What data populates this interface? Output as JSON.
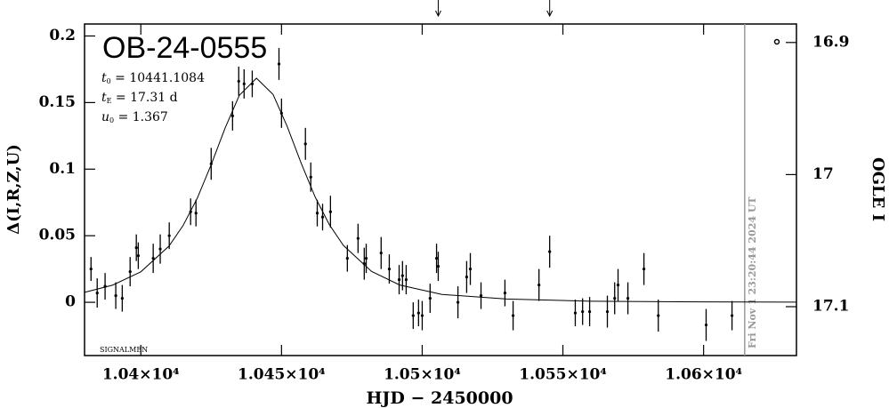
{
  "chart_data": {
    "type": "scatter",
    "title": "OB-24-0555",
    "parameters": [
      {
        "symbol": "t",
        "subscript": "0",
        "text": " = 10441.1084"
      },
      {
        "symbol": "t",
        "subscript": "E",
        "text": " = 17.31 d"
      },
      {
        "symbol": "u",
        "subscript": "0",
        "text": " = 1.367"
      }
    ],
    "annotation": "SIGNALMEN",
    "xlabel": "HJD − 2450000",
    "ylabel": "Δ(I,R,Z,U)",
    "y2label": "OGLE I",
    "color": "#000000",
    "x": [
      10382.3,
      10384.5,
      10387.3,
      10391.1,
      10393.4,
      10396.2,
      10398.4,
      10399.1,
      10404.4,
      10406.9,
      10410.1,
      10417.7,
      10419.6,
      10425.0,
      10432.6,
      10434.8,
      10436.7,
      10439.6,
      10449.1,
      10450.0,
      10458.5,
      10460.4,
      10462.7,
      10464.6,
      10467.4,
      10473.4,
      10477.2,
      10479.4,
      10480.1,
      10485.4,
      10488.3,
      10491.8,
      10493.0,
      10494.3,
      10496.8,
      10498.7,
      10500.0,
      10502.8,
      10505.1,
      10505.7,
      10512.7,
      10515.8,
      10517.1,
      10520.9,
      10529.4,
      10532.3,
      10541.5,
      10545.3,
      10554.4,
      10557.0,
      10559.5,
      10565.8,
      10568.4,
      10569.6,
      10573.1,
      10578.8,
      10583.9,
      10600.9,
      10610.1
    ],
    "values": [
      0.025,
      0.007,
      0.012,
      0.005,
      0.003,
      0.023,
      0.041,
      0.035,
      0.033,
      0.04,
      0.05,
      0.068,
      0.067,
      0.104,
      0.14,
      0.166,
      0.164,
      0.164,
      0.179,
      0.142,
      0.119,
      0.094,
      0.067,
      0.064,
      0.068,
      0.033,
      0.048,
      0.029,
      0.033,
      0.037,
      0.025,
      0.017,
      0.02,
      0.017,
      -0.01,
      -0.008,
      -0.01,
      0.003,
      0.033,
      0.027,
      0.0,
      0.019,
      0.025,
      0.005,
      0.007,
      -0.01,
      0.013,
      0.038,
      -0.008,
      -0.007,
      -0.007,
      -0.007,
      0.003,
      0.013,
      0.003,
      0.025,
      -0.01,
      -0.017,
      -0.01
    ],
    "errors": [
      0.009,
      0.011,
      0.01,
      0.01,
      0.01,
      0.011,
      0.01,
      0.01,
      0.011,
      0.011,
      0.01,
      0.01,
      0.01,
      0.012,
      0.011,
      0.011,
      0.011,
      0.01,
      0.012,
      0.011,
      0.012,
      0.011,
      0.01,
      0.01,
      0.012,
      0.01,
      0.011,
      0.012,
      0.011,
      0.012,
      0.011,
      0.011,
      0.011,
      0.011,
      0.01,
      0.01,
      0.011,
      0.011,
      0.011,
      0.011,
      0.012,
      0.012,
      0.012,
      0.01,
      0.01,
      0.011,
      0.012,
      0.012,
      0.01,
      0.01,
      0.011,
      0.012,
      0.012,
      0.012,
      0.012,
      0.012,
      0.012,
      0.012,
      0.011
    ],
    "model": {
      "color": "#000000",
      "x": [
        10380,
        10390,
        10400,
        10410,
        10415,
        10420,
        10425,
        10430,
        10435,
        10441.1,
        10447,
        10452,
        10457,
        10462,
        10467,
        10472,
        10482,
        10492,
        10507,
        10530,
        10560,
        10600,
        10633
      ],
      "values": [
        0.0075,
        0.0129,
        0.0229,
        0.0422,
        0.0576,
        0.0779,
        0.1033,
        0.1311,
        0.1554,
        0.1683,
        0.1561,
        0.1322,
        0.1044,
        0.0789,
        0.0583,
        0.0427,
        0.0232,
        0.013,
        0.0059,
        0.0025,
        0.00083,
        0.00027,
        0.00013
      ]
    },
    "now_line": {
      "x": 10614.6,
      "label": "Fri Nov  1 23:20:44 2024 UT",
      "color": "#999999"
    },
    "arrows": [
      10505.7,
      10545.3
    ],
    "xlim": [
      10380,
      10633
    ],
    "ylim": [
      -0.04,
      0.209
    ],
    "y2lim": [
      17.137,
      16.886
    ],
    "xticks": [
      {
        "value": 10400,
        "label": "1.04×10⁴"
      },
      {
        "value": 10450,
        "label": "1.045×10⁴"
      },
      {
        "value": 10500,
        "label": "1.05×10⁴"
      },
      {
        "value": 10550,
        "label": "1.055×10⁴"
      },
      {
        "value": 10600,
        "label": "1.06×10⁴"
      }
    ],
    "yticks": [
      0,
      0.05,
      0.1,
      0.15,
      0.2
    ],
    "y2ticks": [
      16.9,
      17,
      17.1
    ]
  }
}
